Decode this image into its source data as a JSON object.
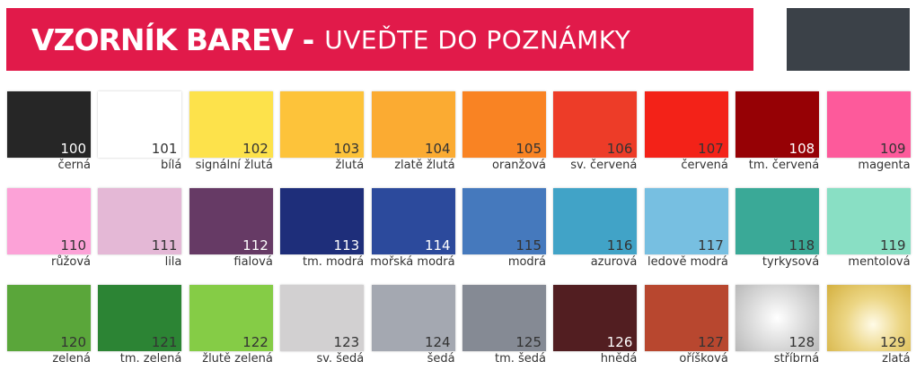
{
  "header": {
    "title_bold": "VZORNÍK BAREV -",
    "title_rest": "UVEĎTE DO POZNÁMKY",
    "accent": "#e11a4a",
    "box_color": "#3b4148"
  },
  "swatches": [
    {
      "code": "100",
      "name": "černá",
      "color": "#262626",
      "text": "#fff"
    },
    {
      "code": "101",
      "name": "bílá",
      "color": "#ffffff",
      "text": "#333"
    },
    {
      "code": "102",
      "name": "signální žlutá",
      "color": "#fde24b",
      "text": "#333"
    },
    {
      "code": "103",
      "name": "žlutá",
      "color": "#fdc33a",
      "text": "#333"
    },
    {
      "code": "104",
      "name": "zlatě žlutá",
      "color": "#fbab32",
      "text": "#333"
    },
    {
      "code": "105",
      "name": "oranžová",
      "color": "#f98323",
      "text": "#333"
    },
    {
      "code": "106",
      "name": "sv. červená",
      "color": "#ed3c28",
      "text": "#333"
    },
    {
      "code": "107",
      "name": "červená",
      "color": "#f32218",
      "text": "#333"
    },
    {
      "code": "108",
      "name": "tm. červená",
      "color": "#960105",
      "text": "#fff"
    },
    {
      "code": "109",
      "name": "magenta",
      "color": "#fd5a9b",
      "text": "#333"
    },
    {
      "code": "110",
      "name": "růžová",
      "color": "#fca2d7",
      "text": "#333"
    },
    {
      "code": "111",
      "name": "lila",
      "color": "#e4b8d6",
      "text": "#333"
    },
    {
      "code": "112",
      "name": "fialová",
      "color": "#663a65",
      "text": "#fff"
    },
    {
      "code": "113",
      "name": "tm. modrá",
      "color": "#1e2e7a",
      "text": "#fff"
    },
    {
      "code": "114",
      "name": "mořská modrá",
      "color": "#2c4a9c",
      "text": "#fff"
    },
    {
      "code": "115",
      "name": "modrá",
      "color": "#4579bd",
      "text": "#333"
    },
    {
      "code": "116",
      "name": "azurová",
      "color": "#41a3c7",
      "text": "#333"
    },
    {
      "code": "117",
      "name": "ledově modrá",
      "color": "#77bfe1",
      "text": "#333"
    },
    {
      "code": "118",
      "name": "tyrkysová",
      "color": "#3aa997",
      "text": "#333"
    },
    {
      "code": "119",
      "name": "mentolová",
      "color": "#89dfc4",
      "text": "#333"
    },
    {
      "code": "120",
      "name": "zelená",
      "color": "#5aa63a",
      "text": "#333"
    },
    {
      "code": "121",
      "name": "tm. zelená",
      "color": "#2c8434",
      "text": "#333"
    },
    {
      "code": "122",
      "name": "žlutě zelená",
      "color": "#85cc46",
      "text": "#333"
    },
    {
      "code": "123",
      "name": "sv. šedá",
      "color": "#d2d0d1",
      "text": "#333"
    },
    {
      "code": "124",
      "name": "šedá",
      "color": "#a4a8b1",
      "text": "#333"
    },
    {
      "code": "125",
      "name": "tm. šedá",
      "color": "#858a94",
      "text": "#333"
    },
    {
      "code": "126",
      "name": "hnědá",
      "color": "#521e21",
      "text": "#fff"
    },
    {
      "code": "127",
      "name": "oříšková",
      "color": "#b8472f",
      "text": "#333"
    },
    {
      "code": "128",
      "name": "stříbrná",
      "color": "radial-gradient(circle at 50% 50%, #ffffff 0%, #dcdcdc 50%, #b9b9b9 100%)",
      "text": "#333"
    },
    {
      "code": "129",
      "name": "zlatá",
      "color": "radial-gradient(circle at 55% 60%, #fffbe8 0%, #ecd685 45%, #d4b03f 100%)",
      "text": "#333"
    }
  ]
}
